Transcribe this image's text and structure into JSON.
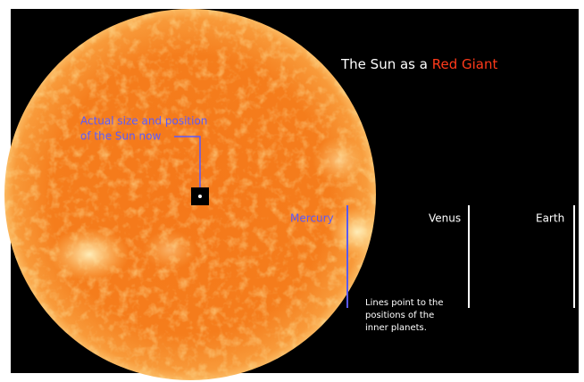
{
  "title": {
    "prefix": "The Sun as a",
    "highlight": "Red Giant"
  },
  "sun_now_label": [
    "Actual size and position",
    "of the Sun now"
  ],
  "planets": [
    "Mercury",
    "Venus",
    "Earth"
  ],
  "note": [
    "Lines point to the",
    "positions of the",
    "inner planets."
  ]
}
